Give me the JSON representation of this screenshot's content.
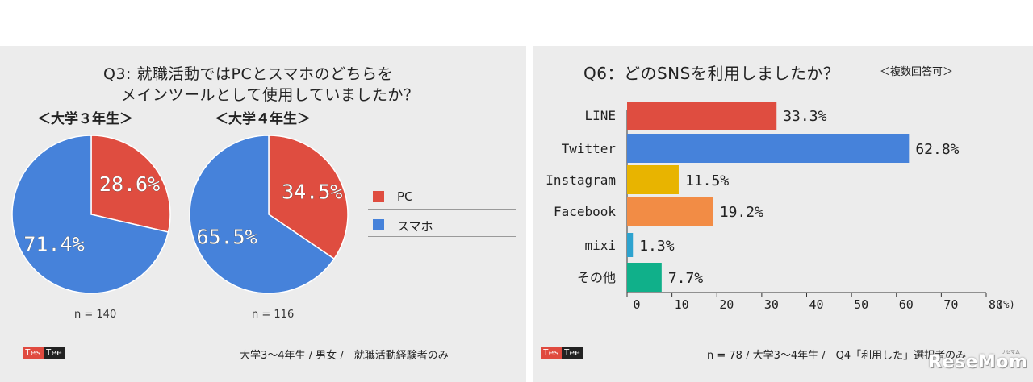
{
  "left": {
    "title_line1": "Q3: 就職活動ではPCとスマホのどちらを",
    "title_line2": "メインツールとして使用していましたか？",
    "pies": [
      {
        "label": "＜大学３年生＞",
        "n": "n = 140"
      },
      {
        "label": "＜大学４年生＞",
        "n": "n = 116"
      }
    ],
    "legend": [
      {
        "label": "PC",
        "color": "#df4d40"
      },
      {
        "label": "スマホ",
        "color": "#4682da"
      }
    ],
    "footer": "大学3〜4年生 / 男女 /　就職活動経験者のみ",
    "logo": [
      "Tes",
      "Tee"
    ]
  },
  "right": {
    "title": "Q6：どのSNSを利用しましたか？",
    "title_note": "＜複数回答可＞",
    "footer": "n = 78 / 大学3〜4年生 /　Q4「利用した」選択者のみ",
    "logo": [
      "Tes",
      "Tee"
    ]
  },
  "watermark": "ReseMom",
  "watermark_sub": "リセマム",
  "chart_data": [
    {
      "type": "pie",
      "title": "＜大学３年生＞",
      "categories": [
        "PC",
        "スマホ"
      ],
      "values": [
        28.6,
        71.4
      ],
      "labels": [
        "28.6%",
        "71.4%"
      ],
      "colors": [
        "#df4d40",
        "#4682da"
      ]
    },
    {
      "type": "pie",
      "title": "＜大学４年生＞",
      "categories": [
        "PC",
        "スマホ"
      ],
      "values": [
        34.5,
        65.5
      ],
      "labels": [
        "34.5%",
        "65.5%"
      ],
      "colors": [
        "#df4d40",
        "#4682da"
      ]
    },
    {
      "type": "bar",
      "orientation": "horizontal",
      "title": "Q6：どのSNSを利用しましたか？",
      "categories": [
        "LINE",
        "Twitter",
        "Instagram",
        "Facebook",
        "mixi",
        "その他"
      ],
      "values": [
        33.3,
        62.8,
        11.5,
        19.2,
        1.3,
        7.7
      ],
      "labels": [
        "33.3%",
        "62.8%",
        "11.5%",
        "19.2%",
        "1.3%",
        "7.7%"
      ],
      "colors": [
        "#df4d40",
        "#4682da",
        "#e8b400",
        "#f28c45",
        "#2ea3cf",
        "#10b08a"
      ],
      "xlim": [
        0,
        80
      ],
      "xticks": [
        "0",
        "10",
        "20",
        "30",
        "40",
        "50",
        "60",
        "70",
        "80"
      ],
      "xunit": "(%)",
      "grid": false
    }
  ]
}
